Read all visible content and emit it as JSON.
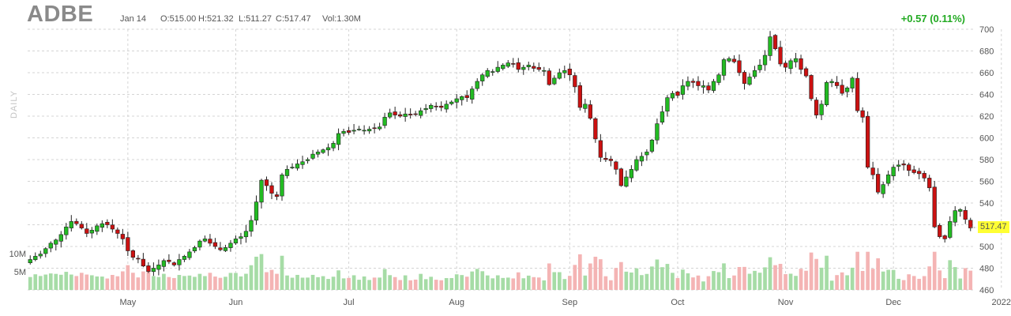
{
  "header": {
    "ticker": "ADBE",
    "date": "Jan 14",
    "open": "O:515.00",
    "high": "H:521.32",
    "low": "L:511.27",
    "close": "C:517.47",
    "volume": "Vol:1.30M",
    "change": "+0.57 (0.11%)",
    "period_label": "DAILY",
    "last_price": "517.47"
  },
  "colors": {
    "up": "#22bb22",
    "down": "#cc1111",
    "up_volume": "#a6dca6",
    "down_volume": "#f4b4b4",
    "change_text": "#22aa22",
    "last_price_bg": "#ffff33",
    "grid": "#d4d4d4"
  },
  "chart_data": {
    "type": "candlestick",
    "price_axis": {
      "min": 460,
      "max": 700,
      "ticks": [
        460,
        480,
        500,
        520,
        540,
        560,
        580,
        600,
        620,
        640,
        660,
        680,
        700
      ],
      "side": "right"
    },
    "volume_axis": {
      "ticks": [
        "5M",
        "10M"
      ],
      "tick_values": [
        5,
        10
      ],
      "unit": "M"
    },
    "month_labels": [
      {
        "label": "May",
        "index": 19
      },
      {
        "label": "Jun",
        "index": 40
      },
      {
        "label": "Jul",
        "index": 62
      },
      {
        "label": "Aug",
        "index": 83
      },
      {
        "label": "Sep",
        "index": 105
      },
      {
        "label": "Oct",
        "index": 126
      },
      {
        "label": "Nov",
        "index": 147
      },
      {
        "label": "Dec",
        "index": 168
      },
      {
        "label": "2022",
        "index": 189
      }
    ],
    "grid": true,
    "closes": [
      488,
      491,
      493,
      498,
      503,
      506,
      511,
      518,
      523,
      521,
      517,
      512,
      515,
      519,
      521,
      520,
      516,
      512,
      507,
      496,
      490,
      489,
      482,
      477,
      480,
      483,
      487,
      486,
      483,
      488,
      491,
      495,
      499,
      505,
      507,
      503,
      500,
      497,
      499,
      503,
      507,
      509,
      514,
      524,
      541,
      561,
      556,
      549,
      546,
      566,
      571,
      573,
      576,
      578,
      580,
      585,
      587,
      589,
      591,
      595,
      604,
      606,
      605,
      607,
      608,
      607,
      608,
      609,
      610,
      619,
      623,
      621,
      620,
      622,
      621,
      622,
      625,
      627,
      630,
      629,
      628,
      631,
      633,
      636,
      638,
      637,
      645,
      652,
      658,
      662,
      661,
      665,
      667,
      669,
      668,
      663,
      665,
      667,
      664,
      663,
      662,
      649,
      655,
      660,
      662,
      658,
      647,
      628,
      631,
      618,
      599,
      582,
      580,
      579,
      571,
      556,
      564,
      571,
      580,
      583,
      587,
      598,
      613,
      624,
      637,
      641,
      639,
      648,
      652,
      651,
      648,
      648,
      644,
      652,
      658,
      672,
      673,
      670,
      660,
      650,
      656,
      662,
      667,
      676,
      693,
      682,
      668,
      665,
      671,
      673,
      663,
      657,
      636,
      621,
      631,
      651,
      652,
      648,
      641,
      646,
      655,
      625,
      619,
      573,
      566,
      550,
      557,
      566,
      573,
      575,
      575,
      570,
      568,
      567,
      563,
      554,
      518,
      509,
      507,
      523,
      533,
      534,
      525,
      517
    ],
    "last_close": 517.47
  }
}
